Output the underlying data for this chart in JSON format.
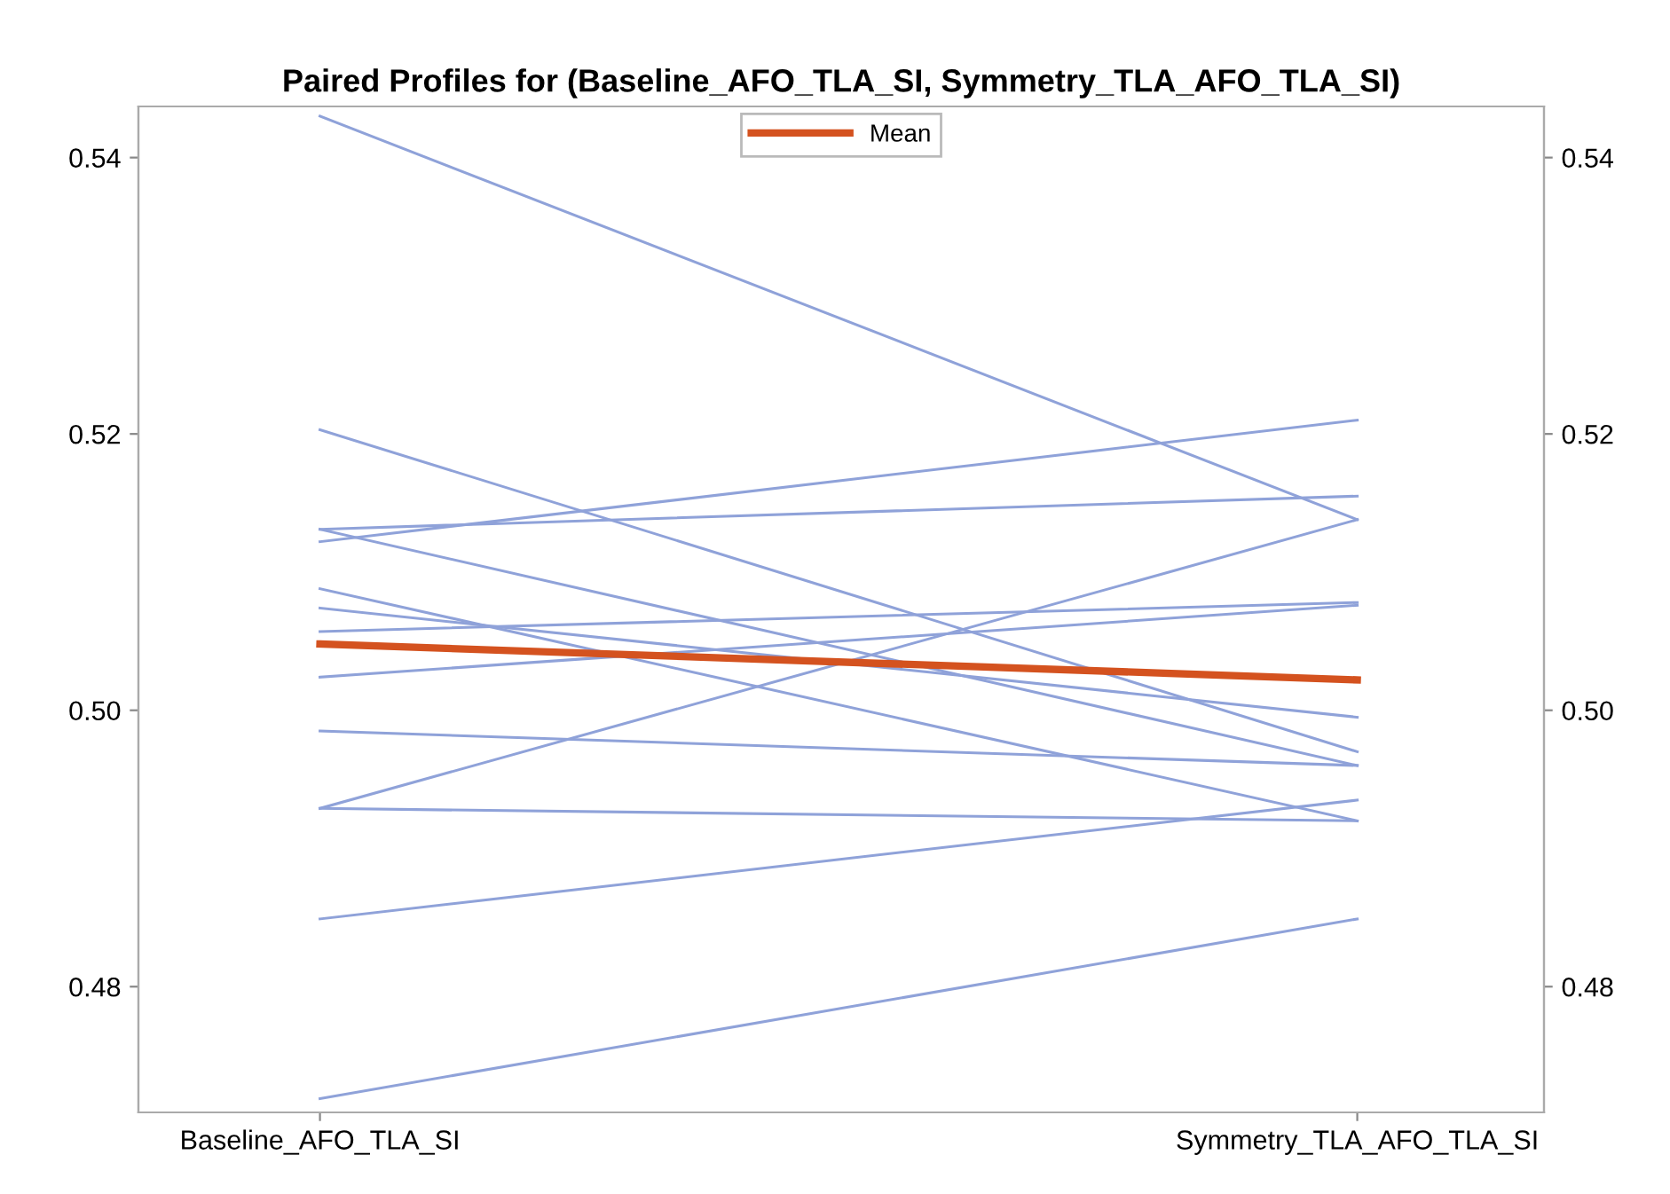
{
  "chart_data": {
    "type": "line",
    "title": "Paired Profiles for (Baseline_AFO_TLA_SI, Symmetry_TLA_AFO_TLA_SI)",
    "categories": [
      "Baseline_AFO_TLA_SI",
      "Symmetry_TLA_AFO_TLA_SI"
    ],
    "series": [
      {
        "color": "#8fa2d9",
        "values": [
          0.543,
          0.5138
        ]
      },
      {
        "color": "#8fa2d9",
        "values": [
          0.5203,
          0.497
        ]
      },
      {
        "color": "#8fa2d9",
        "values": [
          0.5122,
          0.521
        ]
      },
      {
        "color": "#8fa2d9",
        "values": [
          0.5131,
          0.5155
        ]
      },
      {
        "color": "#8fa2d9",
        "values": [
          0.5131,
          0.496
        ]
      },
      {
        "color": "#8fa2d9",
        "values": [
          0.5088,
          0.492
        ]
      },
      {
        "color": "#8fa2d9",
        "values": [
          0.5074,
          0.4995
        ]
      },
      {
        "color": "#8fa2d9",
        "values": [
          0.5057,
          0.5078
        ]
      },
      {
        "color": "#8fa2d9",
        "values": [
          0.5024,
          0.5076
        ]
      },
      {
        "color": "#8fa2d9",
        "values": [
          0.4985,
          0.496
        ]
      },
      {
        "color": "#8fa2d9",
        "values": [
          0.4929,
          0.5138
        ]
      },
      {
        "color": "#8fa2d9",
        "values": [
          0.4929,
          0.492
        ]
      },
      {
        "color": "#8fa2d9",
        "values": [
          0.4849,
          0.4935
        ]
      },
      {
        "color": "#8fa2d9",
        "values": [
          0.4719,
          0.4849
        ]
      },
      {
        "name": "Mean",
        "color": "#d4521f",
        "values": [
          0.5048,
          0.5022
        ]
      }
    ],
    "ylim": [
      0.4709,
      0.5437
    ],
    "yticks": [
      0.48,
      {
        "value": 0.5,
        "label": "0.50"
      },
      0.52,
      0.54
    ],
    "y2lim": [
      0.4709,
      0.5437
    ],
    "y2ticks": [
      0.48,
      {
        "value": 0.5,
        "label": "0.50"
      },
      0.52,
      0.54
    ],
    "grid": false,
    "legend": "top",
    "marker": "none",
    "line_style": "solid"
  }
}
